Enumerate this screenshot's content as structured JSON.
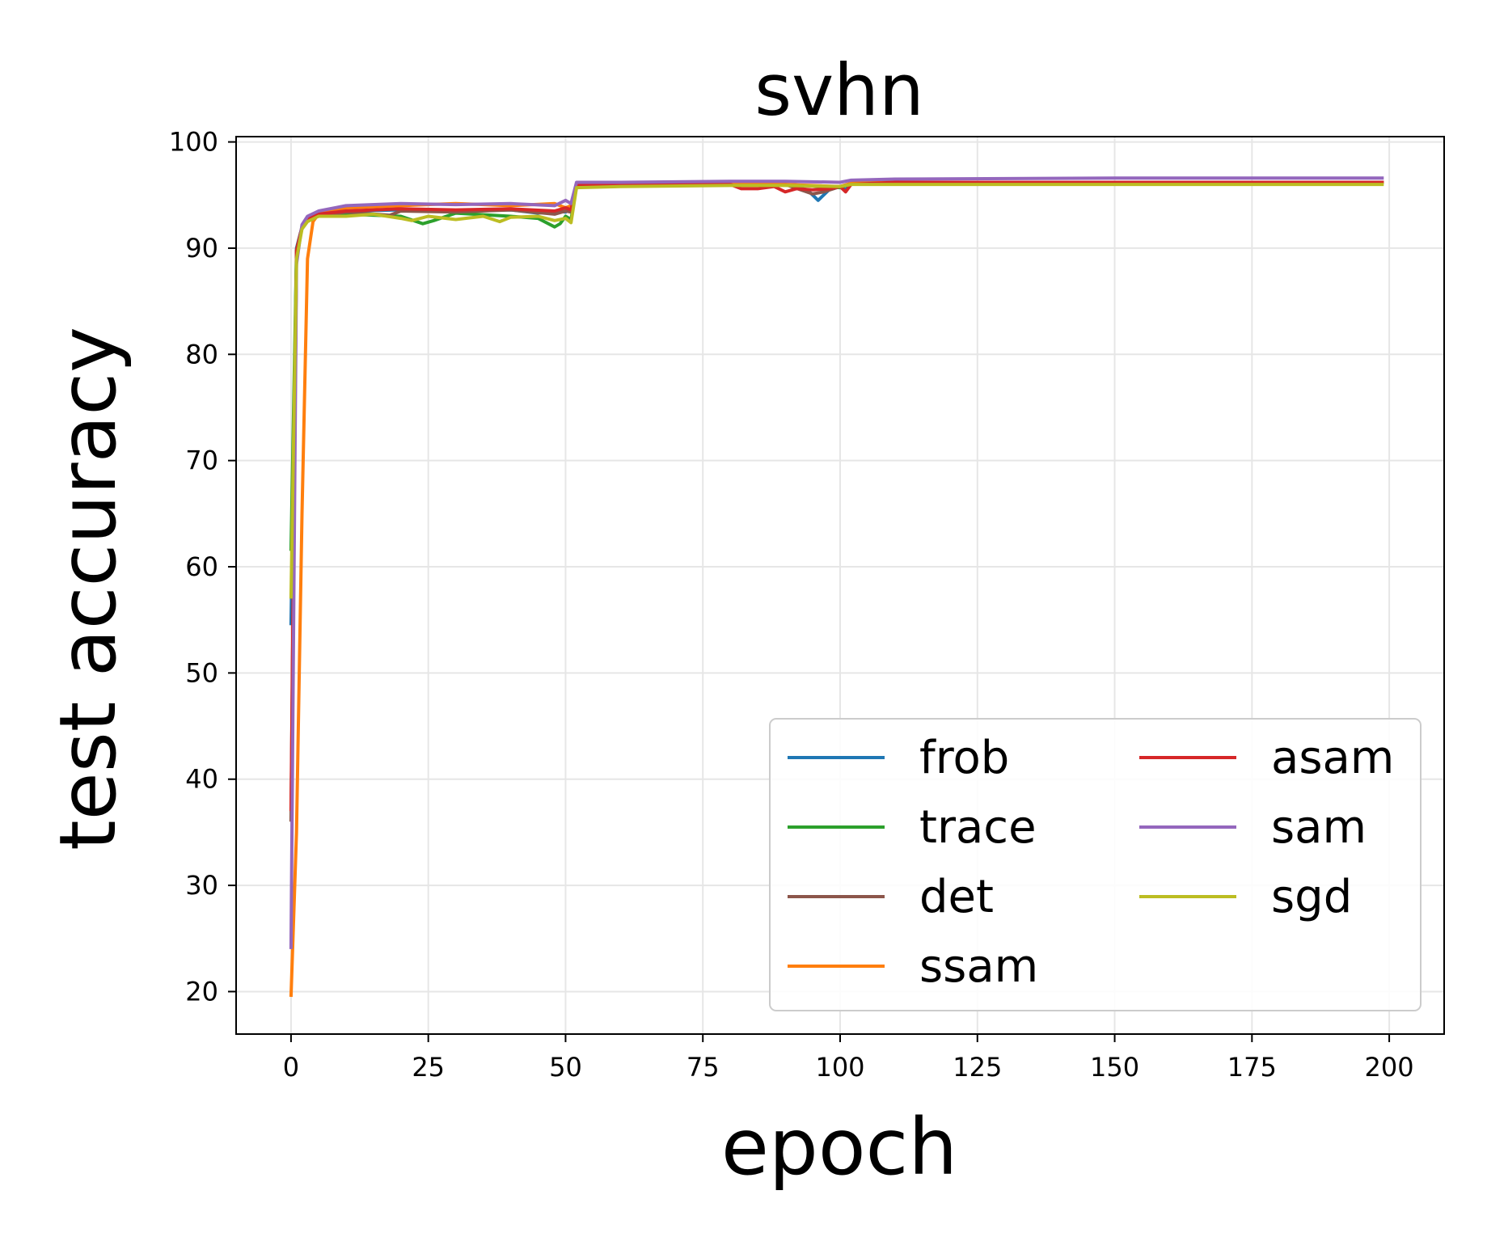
{
  "chart_data": {
    "type": "line",
    "title": "svhn",
    "xlabel": "epoch",
    "ylabel": "test accuracy",
    "xlim": [
      -10,
      210
    ],
    "ylim": [
      16,
      100.5
    ],
    "xticks": [
      0,
      25,
      50,
      75,
      100,
      125,
      150,
      175,
      200
    ],
    "yticks": [
      20,
      30,
      40,
      50,
      60,
      70,
      80,
      90,
      100
    ],
    "grid": true,
    "legend": {
      "placement": "lower-right",
      "columns": 2
    },
    "series": [
      {
        "name": "frob",
        "color": "#1f77b4",
        "x": [
          0,
          1,
          2,
          3,
          4,
          10,
          20,
          30,
          40,
          45,
          48,
          50,
          51,
          52,
          60,
          80,
          90,
          94,
          96,
          98,
          100,
          101,
          102,
          110,
          150,
          199
        ],
        "y": [
          54.5,
          90.0,
          92.0,
          92.8,
          93.0,
          93.5,
          93.6,
          93.5,
          93.6,
          93.3,
          93.5,
          93.4,
          93.8,
          96.0,
          96.0,
          96.1,
          96.0,
          95.5,
          94.5,
          95.5,
          95.8,
          95.5,
          96.1,
          96.2,
          96.2,
          96.2
        ]
      },
      {
        "name": "trace",
        "color": "#2ca02c",
        "x": [
          0,
          1,
          2,
          3,
          5,
          10,
          20,
          24,
          26,
          30,
          40,
          45,
          48,
          49,
          50,
          51,
          52,
          60,
          80,
          90,
          100,
          102,
          110,
          150,
          199
        ],
        "y": [
          61.5,
          89.8,
          92.0,
          92.8,
          93.0,
          93.2,
          93.0,
          92.3,
          92.6,
          93.3,
          93.0,
          92.8,
          92.0,
          92.3,
          93.0,
          92.7,
          95.8,
          96.0,
          96.1,
          96.0,
          95.7,
          96.1,
          96.2,
          96.2,
          96.2
        ]
      },
      {
        "name": "det",
        "color": "#8c564b",
        "x": [
          0,
          1,
          2,
          3,
          5,
          10,
          18,
          20,
          30,
          40,
          48,
          50,
          51,
          52,
          60,
          80,
          90,
          95,
          97,
          100,
          102,
          110,
          150,
          199
        ],
        "y": [
          36.0,
          89.7,
          92.0,
          92.8,
          93.0,
          93.4,
          93.1,
          93.5,
          93.4,
          93.6,
          93.2,
          93.5,
          93.4,
          96.0,
          96.1,
          96.1,
          96.0,
          95.1,
          95.3,
          95.8,
          96.1,
          96.2,
          96.2,
          96.2
        ]
      },
      {
        "name": "ssam",
        "color": "#ff7f0e",
        "x": [
          0,
          1,
          2,
          3,
          4,
          5,
          10,
          20,
          30,
          40,
          48,
          50,
          51,
          52,
          60,
          80,
          90,
          100,
          102,
          110,
          150,
          199
        ],
        "y": [
          19.5,
          35.0,
          65.0,
          89.0,
          92.5,
          93.2,
          93.8,
          94.0,
          94.2,
          94.0,
          94.2,
          93.8,
          94.0,
          96.0,
          96.0,
          96.1,
          96.0,
          95.8,
          96.1,
          96.2,
          96.2,
          96.2
        ]
      },
      {
        "name": "asam",
        "color": "#d62728",
        "x": [
          0,
          1,
          2,
          3,
          5,
          10,
          20,
          30,
          40,
          48,
          50,
          51,
          52,
          60,
          80,
          82,
          85,
          88,
          90,
          92,
          95,
          98,
          100,
          101,
          102,
          110,
          150,
          199
        ],
        "y": [
          37.0,
          89.8,
          92.0,
          92.8,
          93.2,
          93.5,
          93.7,
          93.6,
          93.7,
          93.5,
          93.8,
          93.6,
          96.0,
          96.0,
          96.0,
          95.6,
          95.6,
          95.8,
          95.3,
          95.6,
          95.5,
          95.6,
          95.8,
          95.3,
          96.0,
          96.2,
          96.2,
          96.2
        ]
      },
      {
        "name": "sam",
        "color": "#9467bd",
        "x": [
          0,
          1,
          2,
          3,
          5,
          10,
          20,
          30,
          40,
          48,
          50,
          51,
          52,
          60,
          80,
          90,
          100,
          102,
          110,
          150,
          199
        ],
        "y": [
          24.0,
          88.5,
          92.2,
          93.0,
          93.5,
          94.0,
          94.2,
          94.1,
          94.2,
          94.0,
          94.5,
          94.2,
          96.2,
          96.2,
          96.3,
          96.3,
          96.2,
          96.4,
          96.5,
          96.6,
          96.6
        ]
      },
      {
        "name": "sgd",
        "color": "#bcbd22",
        "x": [
          0,
          1,
          2,
          3,
          5,
          10,
          15,
          20,
          22,
          25,
          30,
          35,
          38,
          40,
          45,
          48,
          50,
          51,
          52,
          60,
          80,
          90,
          100,
          102,
          110,
          150,
          199
        ],
        "y": [
          57.0,
          89.0,
          91.8,
          92.5,
          93.0,
          93.0,
          93.2,
          92.8,
          92.6,
          93.0,
          92.7,
          93.0,
          92.5,
          92.9,
          93.0,
          92.6,
          92.8,
          92.4,
          95.7,
          95.8,
          95.9,
          95.9,
          95.8,
          96.0,
          96.0,
          96.0,
          96.0
        ]
      }
    ]
  }
}
